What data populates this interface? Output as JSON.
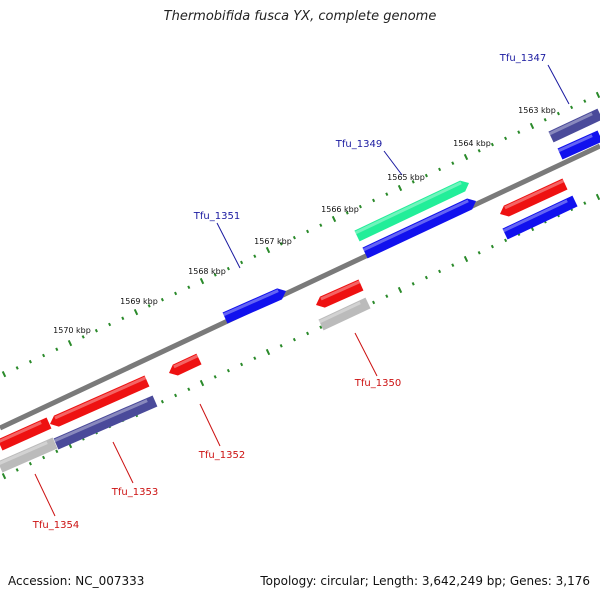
{
  "title": "Thermobifida fusca YX, complete genome",
  "footer": {
    "accession": "Accession: NC_007333",
    "topology": "Topology: circular; Length: 3,642,249 bp; Genes: 3,176"
  },
  "colors": {
    "backbone": "#7a7a7a",
    "ticks": "#2a8a2a",
    "label_forward": "#1a1aa0",
    "label_reverse": "#cc1111",
    "red": "#ee1111",
    "blue": "#1111ee",
    "purple": "#4a4a9a",
    "grey": "#bbbbbb",
    "green": "#22ee99"
  },
  "tick_labels": [
    "1563 kbp",
    "1564 kbp",
    "1565 kbp",
    "1566 kbp",
    "1567 kbp",
    "1568 kbp",
    "1569 kbp",
    "1570 kbp"
  ],
  "genes": [
    {
      "id": "Tfu_1347",
      "strand": "forward",
      "color": "purple"
    },
    {
      "id": "Tfu_1349",
      "strand": "forward",
      "color": "green"
    },
    {
      "id": "Tfu_1351",
      "strand": "forward",
      "color": "blue"
    },
    {
      "id": "Tfu_1350",
      "strand": "reverse",
      "color": "grey"
    },
    {
      "id": "Tfu_1352",
      "strand": "reverse",
      "color": "red"
    },
    {
      "id": "Tfu_1353",
      "strand": "reverse",
      "color": "purple"
    },
    {
      "id": "Tfu_1354",
      "strand": "reverse",
      "color": "grey"
    }
  ]
}
